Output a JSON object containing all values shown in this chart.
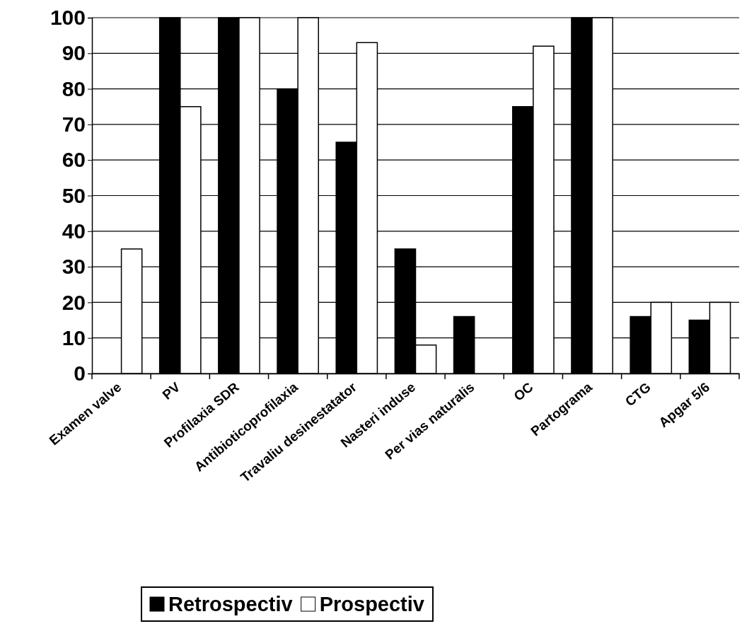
{
  "chart_data": {
    "type": "bar",
    "categories": [
      "Examen valve",
      "PV",
      "Profilaxia SDR",
      "Antibioticoprofilaxia",
      "Travaliu desinestatator",
      "Nasteri induse",
      "Per vias naturalis",
      "OC",
      "Partograma",
      "CTG",
      "Apgar  5/6"
    ],
    "series": [
      {
        "name": "Retrospectiv",
        "color": "#000000",
        "values": [
          0,
          100,
          100,
          80,
          65,
          35,
          16,
          75,
          100,
          16,
          15
        ]
      },
      {
        "name": "Prospectiv",
        "color": "#ffffff",
        "values": [
          35,
          75,
          100,
          100,
          93,
          8,
          0,
          92,
          100,
          20,
          20
        ]
      }
    ],
    "ylim": [
      0,
      100
    ],
    "yticks": [
      0,
      10,
      20,
      30,
      40,
      50,
      60,
      70,
      80,
      90,
      100
    ],
    "grid": "y",
    "legend": "bottom"
  }
}
